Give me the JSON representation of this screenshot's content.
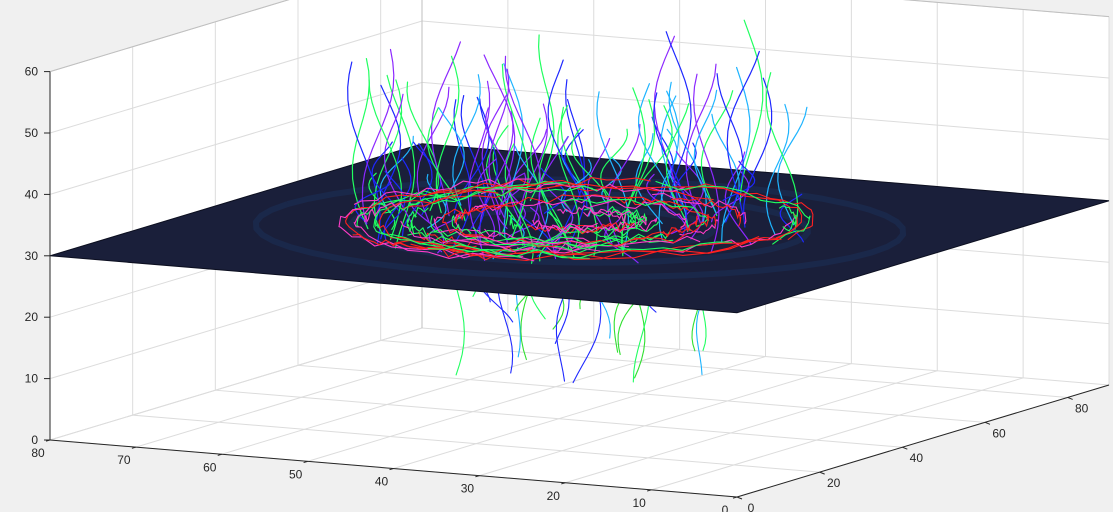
{
  "chart_data": {
    "type": "3d-streamlines",
    "title": "",
    "xlabel": "",
    "ylabel": "",
    "zlabel": "",
    "grid": true,
    "xlim": [
      0,
      80
    ],
    "ylim": [
      0,
      90
    ],
    "zlim": [
      0,
      60
    ],
    "x_ticks": [
      "0",
      "10",
      "20",
      "30",
      "40",
      "50",
      "60",
      "70",
      "80"
    ],
    "y_ticks": [
      "0",
      "20",
      "40",
      "60",
      "80"
    ],
    "z_ticks": [
      "0",
      "10",
      "20",
      "30",
      "40",
      "50",
      "60"
    ],
    "slice_plane": {
      "z": 30,
      "x_range": [
        0,
        80
      ],
      "y_range": [
        0,
        90
      ],
      "color": "#1a1f3a"
    },
    "streamline_colors": [
      "#ff2020",
      "#ff3cc8",
      "#8c28ff",
      "#1e28ff",
      "#1eb4ff",
      "#20ff60",
      "#30e030"
    ]
  }
}
